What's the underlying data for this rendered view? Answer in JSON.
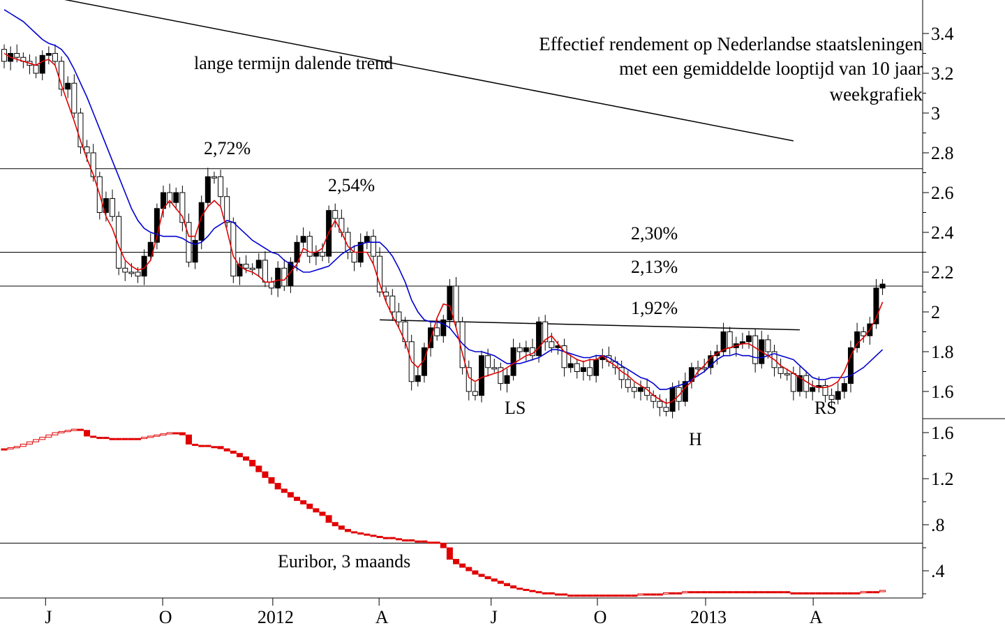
{
  "chart_data": [
    {
      "type": "candlestick",
      "title_lines": [
        "Effectief rendement op Nederlandse staatsleningen",
        "met een gemiddelde looptijd van 10 jaar",
        "weekgrafiek"
      ],
      "y_ticks": [
        "3.4",
        "3.2",
        "3",
        "2.8",
        "2.6",
        "2.4",
        "2.2",
        "2",
        "1.8",
        "1.6"
      ],
      "ylim": [
        1.45,
        3.55
      ],
      "x_ticks": [
        "J",
        "O",
        "2012",
        "A",
        "J",
        "O",
        "2013",
        "A"
      ],
      "horizontal_levels": [
        2.72,
        2.3,
        2.13
      ],
      "annotations": {
        "trend_label": "lange termijn dalende trend",
        "peak_1": "2,72%",
        "peak_2": "2,54%",
        "level_230": "2,30%",
        "level_213": "2,13%",
        "neckline": "1,92%",
        "left_shoulder": "LS",
        "head": "H",
        "right_shoulder": "RS"
      },
      "trend_line": {
        "from": {
          "week": 8,
          "value": 3.58
        },
        "to": {
          "week": 124,
          "value": 2.86
        }
      },
      "neckline_line": {
        "from": {
          "week": 59,
          "value": 1.96
        },
        "to": {
          "week": 125,
          "value": 1.91
        }
      },
      "series": [
        {
          "name": "",
          "kind": "short moving average",
          "color": "#e00000"
        },
        {
          "name": "",
          "kind": "long moving average",
          "color": "#0000d0"
        }
      ],
      "closes": [
        3.26,
        3.3,
        3.28,
        3.26,
        3.24,
        3.2,
        3.29,
        3.3,
        3.26,
        3.12,
        3.15,
        3.0,
        2.83,
        2.8,
        2.68,
        2.5,
        2.57,
        2.48,
        2.22,
        2.2,
        2.2,
        2.18,
        2.28,
        2.35,
        2.52,
        2.6,
        2.55,
        2.6,
        2.45,
        2.25,
        2.36,
        2.55,
        2.68,
        2.68,
        2.58,
        2.45,
        2.18,
        2.24,
        2.22,
        2.22,
        2.26,
        2.15,
        2.12,
        2.22,
        2.13,
        2.25,
        2.35,
        2.38,
        2.28,
        2.3,
        2.28,
        2.51,
        2.47,
        2.4,
        2.3,
        2.25,
        2.35,
        2.38,
        2.28,
        2.1,
        2.08,
        2.0,
        1.95,
        1.85,
        1.65,
        1.68,
        1.82,
        1.92,
        1.88,
        1.96,
        2.13,
        1.95,
        1.72,
        1.6,
        1.58,
        1.78,
        1.72,
        1.72,
        1.64,
        1.68,
        1.82,
        1.8,
        1.82,
        1.78,
        1.95,
        1.85,
        1.82,
        1.83,
        1.72,
        1.74,
        1.7,
        1.72,
        1.68,
        1.76,
        1.78,
        1.75,
        1.72,
        1.66,
        1.62,
        1.6,
        1.62,
        1.58,
        1.55,
        1.52,
        1.5,
        1.62,
        1.55,
        1.65,
        1.72,
        1.72,
        1.72,
        1.78,
        1.8,
        1.9,
        1.82,
        1.84,
        1.85,
        1.88,
        1.74,
        1.86,
        1.8,
        1.72,
        1.69,
        1.69,
        1.6,
        1.68,
        1.6,
        1.62,
        1.63,
        1.58,
        1.56,
        1.6,
        1.64,
        1.82,
        1.9,
        1.88,
        1.94,
        2.12,
        2.14
      ],
      "moving_average_short": [
        3.3,
        3.28,
        3.27,
        3.26,
        3.25,
        3.24,
        3.26,
        3.27,
        3.24,
        3.14,
        3.05,
        2.96,
        2.86,
        2.77,
        2.69,
        2.59,
        2.48,
        2.42,
        2.33,
        2.26,
        2.23,
        2.21,
        2.22,
        2.26,
        2.38,
        2.52,
        2.56,
        2.52,
        2.48,
        2.38,
        2.38,
        2.48,
        2.53,
        2.56,
        2.53,
        2.41,
        2.28,
        2.23,
        2.21,
        2.2,
        2.18,
        2.15,
        2.15,
        2.16,
        2.16,
        2.2,
        2.24,
        2.32,
        2.3,
        2.3,
        2.32,
        2.4,
        2.46,
        2.4,
        2.33,
        2.3,
        2.3,
        2.3,
        2.24,
        2.14,
        2.05,
        1.98,
        1.92,
        1.85,
        1.75,
        1.72,
        1.76,
        1.86,
        1.97,
        2.04,
        2.03,
        1.92,
        1.79,
        1.67,
        1.65,
        1.67,
        1.68,
        1.69,
        1.7,
        1.72,
        1.74,
        1.76,
        1.78,
        1.79,
        1.82,
        1.86,
        1.88,
        1.84,
        1.8,
        1.78,
        1.76,
        1.75,
        1.76,
        1.76,
        1.78,
        1.75,
        1.73,
        1.7,
        1.68,
        1.65,
        1.63,
        1.61,
        1.58,
        1.56,
        1.54,
        1.55,
        1.58,
        1.62,
        1.65,
        1.7,
        1.73,
        1.77,
        1.79,
        1.81,
        1.82,
        1.83,
        1.84,
        1.84,
        1.82,
        1.8,
        1.78,
        1.76,
        1.73,
        1.71,
        1.69,
        1.67,
        1.65,
        1.63,
        1.62,
        1.62,
        1.63,
        1.65,
        1.7,
        1.78,
        1.84,
        1.87,
        1.91,
        1.97,
        2.05
      ],
      "moving_average_long": [
        3.52,
        3.5,
        3.48,
        3.46,
        3.43,
        3.4,
        3.37,
        3.35,
        3.34,
        3.32,
        3.28,
        3.22,
        3.15,
        3.08,
        3.0,
        2.92,
        2.84,
        2.76,
        2.68,
        2.6,
        2.52,
        2.46,
        2.42,
        2.4,
        2.39,
        2.38,
        2.38,
        2.38,
        2.37,
        2.35,
        2.34,
        2.35,
        2.38,
        2.42,
        2.44,
        2.46,
        2.45,
        2.42,
        2.39,
        2.36,
        2.34,
        2.32,
        2.3,
        2.29,
        2.26,
        2.24,
        2.22,
        2.2,
        2.2,
        2.21,
        2.22,
        2.23,
        2.26,
        2.29,
        2.31,
        2.33,
        2.34,
        2.35,
        2.35,
        2.35,
        2.32,
        2.28,
        2.22,
        2.15,
        2.06,
        2.0,
        1.96,
        1.95,
        1.95,
        1.94,
        1.92,
        1.88,
        1.84,
        1.81,
        1.8,
        1.8,
        1.79,
        1.78,
        1.76,
        1.74,
        1.74,
        1.74,
        1.75,
        1.76,
        1.77,
        1.79,
        1.81,
        1.81,
        1.8,
        1.79,
        1.78,
        1.77,
        1.77,
        1.78,
        1.78,
        1.77,
        1.75,
        1.73,
        1.71,
        1.69,
        1.67,
        1.66,
        1.64,
        1.61,
        1.61,
        1.62,
        1.63,
        1.64,
        1.66,
        1.68,
        1.7,
        1.73,
        1.76,
        1.78,
        1.78,
        1.79,
        1.78,
        1.78,
        1.77,
        1.77,
        1.78,
        1.79,
        1.78,
        1.77,
        1.76,
        1.73,
        1.7,
        1.67,
        1.66,
        1.66,
        1.67,
        1.67,
        1.67,
        1.68,
        1.7,
        1.72,
        1.75,
        1.78,
        1.81
      ]
    },
    {
      "type": "step",
      "label": "Euribor, 3 maands",
      "y_ticks": [
        "1.6",
        "1.2",
        ".8",
        ".4"
      ],
      "ylim": [
        0.15,
        1.75
      ],
      "reference_level": 0.64,
      "series": [
        {
          "name": "",
          "color": "#e00000",
          "values": [
            1.46,
            1.47,
            1.48,
            1.5,
            1.52,
            1.54,
            1.56,
            1.58,
            1.6,
            1.61,
            1.62,
            1.63,
            1.62,
            1.57,
            1.56,
            1.56,
            1.55,
            1.55,
            1.55,
            1.55,
            1.55,
            1.55,
            1.56,
            1.57,
            1.58,
            1.59,
            1.6,
            1.6,
            1.58,
            1.5,
            1.49,
            1.49,
            1.48,
            1.48,
            1.46,
            1.44,
            1.42,
            1.39,
            1.36,
            1.31,
            1.26,
            1.21,
            1.16,
            1.11,
            1.08,
            1.04,
            1.01,
            0.98,
            0.94,
            0.91,
            0.88,
            0.82,
            0.79,
            0.76,
            0.74,
            0.73,
            0.72,
            0.71,
            0.7,
            0.69,
            0.69,
            0.68,
            0.67,
            0.67,
            0.66,
            0.66,
            0.65,
            0.65,
            0.64,
            0.6,
            0.5,
            0.46,
            0.43,
            0.4,
            0.37,
            0.35,
            0.33,
            0.31,
            0.29,
            0.27,
            0.25,
            0.24,
            0.23,
            0.22,
            0.21,
            0.21,
            0.2,
            0.2,
            0.19,
            0.19,
            0.19,
            0.19,
            0.19,
            0.19,
            0.19,
            0.19,
            0.19,
            0.19,
            0.19,
            0.19,
            0.2,
            0.2,
            0.2,
            0.2,
            0.21,
            0.21,
            0.21,
            0.22,
            0.22,
            0.22,
            0.22,
            0.22,
            0.22,
            0.22,
            0.22,
            0.22,
            0.22,
            0.22,
            0.22,
            0.22,
            0.22,
            0.22,
            0.22,
            0.21,
            0.21,
            0.21,
            0.21,
            0.21,
            0.21,
            0.21,
            0.21,
            0.21,
            0.21,
            0.21,
            0.21,
            0.22,
            0.22,
            0.22,
            0.23
          ]
        }
      ]
    }
  ]
}
